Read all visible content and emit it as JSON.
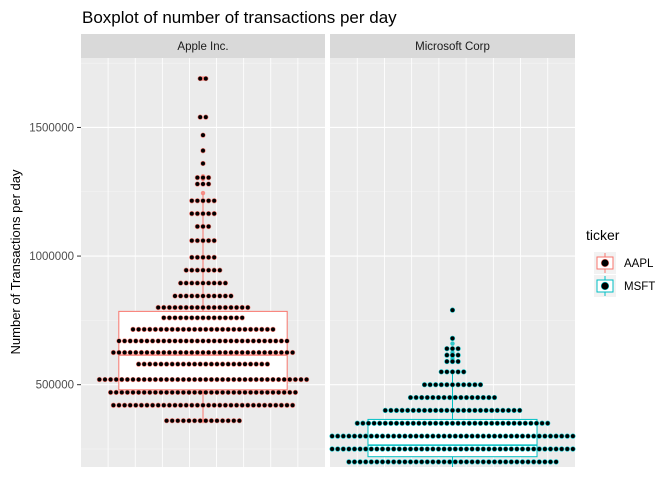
{
  "chart_data": {
    "type": "boxplot",
    "title": "Boxplot of number of transactions per day",
    "xlabel": "",
    "ylabel": "Number of Transactions per day",
    "y_ticks": [
      500000,
      1000000,
      1500000
    ],
    "y_tick_labels": [
      "500000",
      "1000000",
      "1500000"
    ],
    "ylim": [
      180000,
      1770000
    ],
    "grid": true,
    "legend": {
      "title": "ticker",
      "position": "right",
      "entries": [
        "AAPL",
        "MSFT"
      ]
    },
    "colors": {
      "AAPL": "#F8766D",
      "MSFT": "#00BFC4",
      "dot": "#000000",
      "panel_bg": "#EBEBEB",
      "strip_bg": "#D9D9D9"
    },
    "panels": [
      {
        "strip": "Apple Inc.",
        "ticker": "AAPL",
        "box": {
          "q1": 480000,
          "median": 615000,
          "q3": 785000,
          "whisker_low": 350000,
          "whisker_high": 1240000
        },
        "outliers": [
          1245000,
          1300000,
          1310000,
          1690000
        ],
        "dotplot": [
          {
            "y": 360000,
            "n": 14
          },
          {
            "y": 420000,
            "n": 33
          },
          {
            "y": 470000,
            "n": 34
          },
          {
            "y": 520000,
            "n": 38
          },
          {
            "y": 580000,
            "n": 24
          },
          {
            "y": 625000,
            "n": 33
          },
          {
            "y": 670000,
            "n": 31
          },
          {
            "y": 715000,
            "n": 26
          },
          {
            "y": 760000,
            "n": 15
          },
          {
            "y": 800000,
            "n": 17
          },
          {
            "y": 845000,
            "n": 11
          },
          {
            "y": 895000,
            "n": 9
          },
          {
            "y": 945000,
            "n": 7
          },
          {
            "y": 995000,
            "n": 5
          },
          {
            "y": 1060000,
            "n": 5
          },
          {
            "y": 1115000,
            "n": 3
          },
          {
            "y": 1165000,
            "n": 5
          },
          {
            "y": 1215000,
            "n": 5
          },
          {
            "y": 1280000,
            "n": 3
          },
          {
            "y": 1305000,
            "n": 3
          },
          {
            "y": 1360000,
            "n": 1
          },
          {
            "y": 1410000,
            "n": 1
          },
          {
            "y": 1470000,
            "n": 1
          },
          {
            "y": 1540000,
            "n": 2
          },
          {
            "y": 1690000,
            "n": 2
          }
        ]
      },
      {
        "strip": "Microsoft Corp",
        "ticker": "MSFT",
        "box": {
          "q1": 220000,
          "median": 265000,
          "q3": 365000,
          "whisker_low": 180000,
          "whisker_high": 560000
        },
        "outliers": [
          600000,
          610000,
          625000,
          660000,
          790000
        ],
        "dotplot": [
          {
            "y": 200000,
            "n": 38
          },
          {
            "y": 250000,
            "n": 54
          },
          {
            "y": 300000,
            "n": 52
          },
          {
            "y": 350000,
            "n": 35
          },
          {
            "y": 400000,
            "n": 25
          },
          {
            "y": 450000,
            "n": 16
          },
          {
            "y": 500000,
            "n": 11
          },
          {
            "y": 550000,
            "n": 5
          },
          {
            "y": 590000,
            "n": 3
          },
          {
            "y": 615000,
            "n": 3
          },
          {
            "y": 640000,
            "n": 3
          },
          {
            "y": 680000,
            "n": 1
          },
          {
            "y": 790000,
            "n": 1
          }
        ]
      }
    ]
  }
}
